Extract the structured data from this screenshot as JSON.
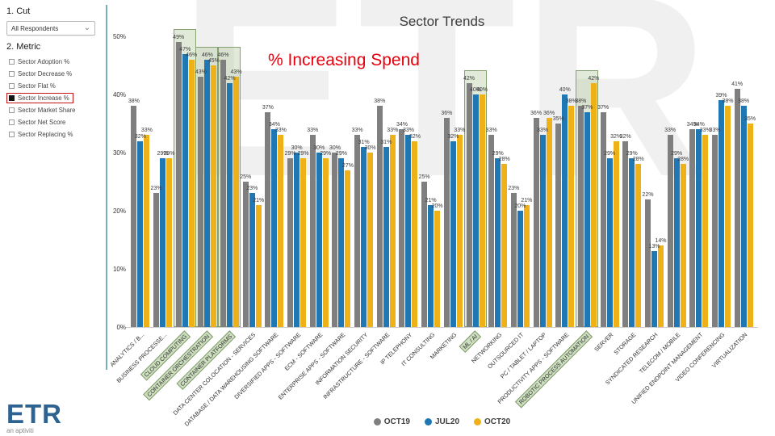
{
  "sidebar": {
    "cut": {
      "heading": "1. Cut",
      "dropdown_value": "All Respondents"
    },
    "metric": {
      "heading": "2. Metric",
      "options": [
        {
          "label": "Sector Adoption %",
          "checked": false,
          "boxed": false
        },
        {
          "label": "Sector Decrease %",
          "checked": false,
          "boxed": false
        },
        {
          "label": "Sector Flat %",
          "checked": false,
          "boxed": false
        },
        {
          "label": "Sector Increase %",
          "checked": true,
          "boxed": true
        },
        {
          "label": "Sector Market Share",
          "checked": false,
          "boxed": false
        },
        {
          "label": "Sector Net Score",
          "checked": false,
          "boxed": false
        },
        {
          "label": "Sector Replacing %",
          "checked": false,
          "boxed": false
        }
      ]
    },
    "logo": {
      "text": "ETR",
      "subtext": "an aptiviti"
    }
  },
  "icons": {
    "chevron_down": "⌄"
  },
  "watermark": {
    "text": "ETR"
  },
  "annotation": {
    "text": "% Increasing Spend",
    "color": "#e8000d"
  },
  "chart_data": {
    "type": "bar",
    "title": "Sector Trends",
    "xlabel": "",
    "ylabel": "",
    "ylim": [
      0,
      50
    ],
    "yticks": [
      "0%",
      "10%",
      "20%",
      "30%",
      "40%",
      "50%"
    ],
    "grid": false,
    "legend_position": "bottom-center",
    "categories": [
      "ANALYTICS / B...",
      "BUSINESS PROCESSE...",
      "CLOUD COMPUTING",
      "CONTAINER ORCHESTRATION",
      "CONTAINER PLATFORMS",
      "DATA CENTER COLOCATION - SERVICES",
      "DATABASE / DATA WAREHOUSING SOFTWARE",
      "DIVERSIFIED APPS - SOFTWARE",
      "ECM - SOFTWARE",
      "ENTERPRISE APPS - SOFTWARE",
      "INFORMATION SECURITY",
      "INFRASTRUCTURE - SOFTWARE",
      "IP TELEPHONY",
      "IT CONSULTING",
      "MARKETING",
      "ML / AI",
      "NETWORKING",
      "OUTSOURCED IT",
      "PC / TABLET / LAPTOP",
      "PRODUCTIVITY APPS - SOFTWARE",
      "ROBOTIC PROCESS AUTOMATION",
      "SERVER",
      "STORAGE",
      "SYNDICATED RESEARCH",
      "TELECOM / MOBILE",
      "UNIFIED ENDPOINT MANAGEMENT",
      "VIDEO CONFERENCING",
      "VIRTUALIZATION"
    ],
    "highlighted_categories": [
      "CLOUD COMPUTING",
      "CONTAINER ORCHESTRATION",
      "CONTAINER PLATFORMS",
      "ML / AI",
      "ROBOTIC PROCESS AUTOMATION"
    ],
    "series": [
      {
        "name": "OCT19",
        "color": "#7f7f7f",
        "values": [
          38,
          23,
          49,
          43,
          46,
          25,
          37,
          29,
          33,
          30,
          33,
          38,
          34,
          25,
          36,
          42,
          33,
          23,
          36,
          35,
          38,
          37,
          32,
          22,
          33,
          34,
          33,
          41
        ]
      },
      {
        "name": "JUL20",
        "color": "#1f77b4",
        "values": [
          32,
          29,
          47,
          46,
          42,
          23,
          34,
          30,
          30,
          29,
          31,
          31,
          33,
          21,
          32,
          40,
          29,
          20,
          33,
          40,
          37,
          29,
          29,
          13,
          29,
          34,
          39,
          38
        ]
      },
      {
        "name": "OCT20",
        "color": "#efb118",
        "values": [
          33,
          29,
          46,
          45,
          43,
          21,
          33,
          29,
          29,
          27,
          30,
          33,
          32,
          20,
          33,
          40,
          28,
          21,
          36,
          38,
          42,
          32,
          28,
          14,
          28,
          33,
          38,
          35
        ]
      }
    ]
  }
}
